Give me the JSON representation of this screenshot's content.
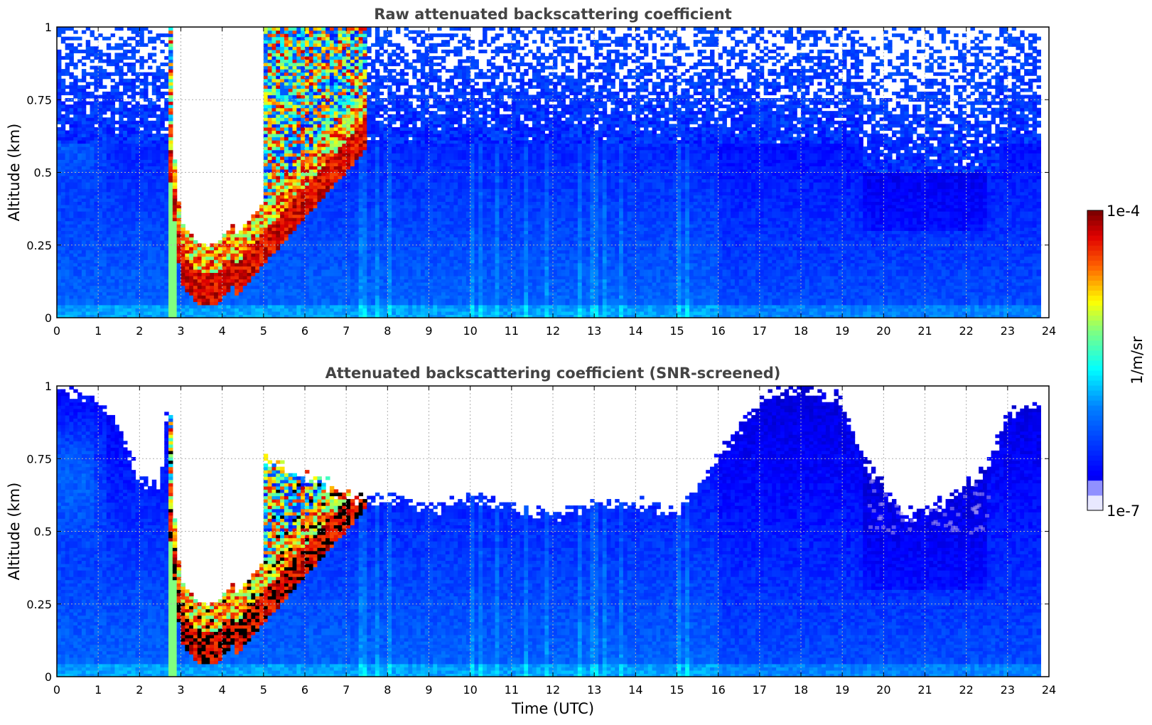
{
  "chart_data": [
    {
      "type": "heatmap",
      "title": "Raw attenuated backscattering coefficient",
      "xlabel": "",
      "ylabel": "Altitude (km)",
      "xlim": [
        0,
        24
      ],
      "ylim": [
        0,
        1
      ],
      "xticks": [
        "0",
        "1",
        "2",
        "3",
        "4",
        "5",
        "6",
        "7",
        "8",
        "9",
        "10",
        "11",
        "12",
        "13",
        "14",
        "15",
        "16",
        "17",
        "18",
        "19",
        "20",
        "21",
        "22",
        "23",
        "24"
      ],
      "yticks": [
        "0",
        "0.25",
        "0.5",
        "0.75",
        "1"
      ],
      "grid": true,
      "screened": false,
      "data_end_hour": 23.8,
      "features": {
        "aerosol_layer_top_km": 0.55,
        "cloud_base_min": {
          "time_utc": 4.0,
          "altitude_km": 0.05
        },
        "cloud_descent_start_utc": 2.7,
        "cloud_ascent_end_utc": 7.4,
        "clear_gap_utc": [
          2.8,
          5.0
        ]
      }
    },
    {
      "type": "heatmap",
      "title": "Attenuated backscattering coefficient (SNR-screened)",
      "xlabel": "Time (UTC)",
      "ylabel": "Altitude (km)",
      "xlim": [
        0,
        24
      ],
      "ylim": [
        0,
        1
      ],
      "xticks": [
        "0",
        "1",
        "2",
        "3",
        "4",
        "5",
        "6",
        "7",
        "8",
        "9",
        "10",
        "11",
        "12",
        "13",
        "14",
        "15",
        "16",
        "17",
        "18",
        "19",
        "20",
        "21",
        "22",
        "23",
        "24"
      ],
      "yticks": [
        "0",
        "0.25",
        "0.5",
        "0.75",
        "1"
      ],
      "grid": true,
      "screened": true,
      "data_end_hour": 23.8,
      "screen_top_profile": [
        [
          0,
          1
        ],
        [
          1,
          0.95
        ],
        [
          1.5,
          0.85
        ],
        [
          2.0,
          0.68
        ],
        [
          2.5,
          0.65
        ],
        [
          2.65,
          0.9
        ],
        [
          7.4,
          0.6
        ],
        [
          8,
          0.62
        ],
        [
          9,
          0.58
        ],
        [
          10,
          0.62
        ],
        [
          11,
          0.58
        ],
        [
          12,
          0.55
        ],
        [
          13,
          0.6
        ],
        [
          14,
          0.6
        ],
        [
          15,
          0.55
        ],
        [
          16,
          0.75
        ],
        [
          17,
          0.95
        ],
        [
          18,
          1
        ],
        [
          19,
          0.95
        ],
        [
          19.5,
          0.75
        ],
        [
          20.5,
          0.55
        ],
        [
          21.5,
          0.6
        ],
        [
          22.5,
          0.72
        ],
        [
          23,
          0.9
        ],
        [
          23.8,
          0.95
        ]
      ]
    }
  ],
  "colorbar": {
    "label": "1/m/sr",
    "max_label": "1e-4",
    "min_label": "1e-7",
    "colormap": "jet",
    "stops": [
      "#000080",
      "#0000ff",
      "#00ffff",
      "#ffff00",
      "#ff0000",
      "#800000"
    ]
  }
}
